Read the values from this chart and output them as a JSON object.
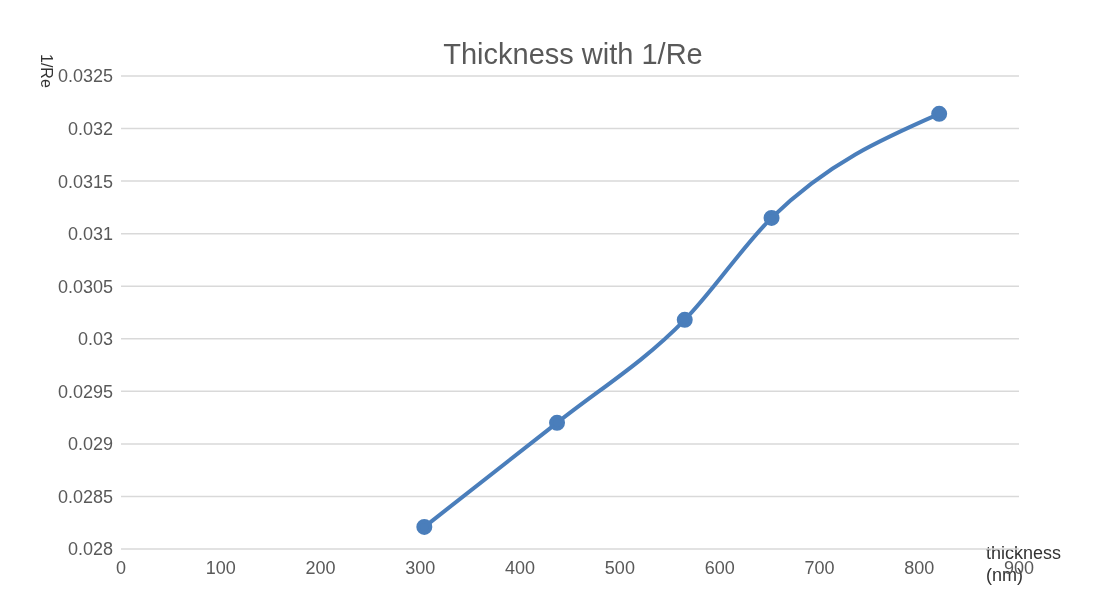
{
  "chart_data": {
    "type": "line",
    "title": "Thickness with 1/Re",
    "xlabel": "thickness (nm)",
    "ylabel": "1/Re",
    "x": [
      304,
      437,
      565,
      652,
      820
    ],
    "series": [
      {
        "color": "#4a7ebb",
        "values": [
          0.02821,
          0.0292,
          0.03018,
          0.03115,
          0.03214
        ]
      }
    ],
    "xlim": [
      0,
      900
    ],
    "xticks": [
      0,
      100,
      200,
      300,
      400,
      500,
      600,
      700,
      800,
      900
    ],
    "ylim": [
      0.028,
      0.0325
    ],
    "yticks": [
      0.028,
      0.0285,
      0.029,
      0.0295,
      0.03,
      0.0305,
      0.031,
      0.0315,
      0.032,
      0.0325
    ],
    "grid": "y",
    "marker": "circle",
    "line_style": "solid",
    "legend": false
  }
}
